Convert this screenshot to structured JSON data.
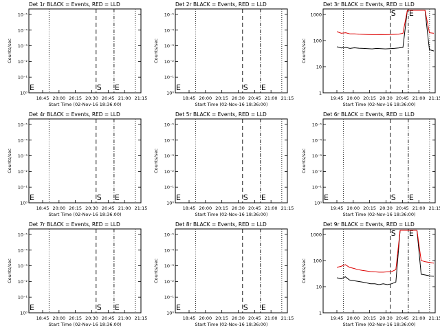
{
  "chart_data": [
    {
      "type": "line",
      "title": "Det 1r BLACK = Events, RED = LLD",
      "xlabel": "Start Time (02-Nov-16 18:36:00)",
      "ylabel": "Counts/sec",
      "yscale": "log",
      "ytick_labels": [
        "10⁰",
        "10⁻¹",
        "10⁻²",
        "10⁻³",
        "10⁻⁴",
        "10⁻⁵"
      ],
      "xtick_labels": [
        "18:45",
        "20:00",
        "20:15",
        "20:30",
        "20:45",
        "21:00",
        "21:15"
      ],
      "markers": [
        "S",
        "E"
      ],
      "series": []
    },
    {
      "type": "line",
      "title": "Det 2r BLACK = Events, RED = LLD",
      "xlabel": "Start Time (02-Nov-16 18:36:00)",
      "ylabel": "Counts/sec",
      "yscale": "log",
      "ytick_labels": [
        "10⁰",
        "10⁻¹",
        "10⁻²",
        "10⁻³",
        "10⁻⁴",
        "10⁻⁵"
      ],
      "xtick_labels": [
        "18:45",
        "20:00",
        "20:15",
        "20:30",
        "20:45",
        "21:00",
        "21:15"
      ],
      "markers": [
        "S",
        "E"
      ],
      "series": []
    },
    {
      "type": "line",
      "title": "Det 3r BLACK = Events, RED = LLD",
      "xlabel": "Start Time (02-Nov-16 18:36:00)",
      "ylabel": "Counts/sec",
      "yscale": "log",
      "ytick_labels": [
        "1",
        "10",
        "100",
        "1000"
      ],
      "xtick_labels": [
        "19:45",
        "20:00",
        "20:15",
        "20:30",
        "20:45",
        "21:00",
        "21:15"
      ],
      "markers": [
        "S",
        "E"
      ],
      "series": [
        {
          "color": "#000000",
          "values": [
            58,
            52,
            55,
            50,
            53,
            51,
            50,
            49,
            48,
            50,
            49,
            48,
            49,
            50,
            52,
            55,
            1400,
            1500,
            1500,
            1500,
            1500,
            45,
            40
          ]
        },
        {
          "color": "#dd0000",
          "values": [
            220,
            190,
            200,
            180,
            180,
            175,
            172,
            170,
            168,
            168,
            170,
            168,
            170,
            172,
            175,
            190,
            1500,
            1500,
            1500,
            1500,
            1500,
            200,
            190
          ]
        }
      ]
    },
    {
      "type": "line",
      "title": "Det 4r BLACK = Events, RED = LLD",
      "xlabel": "Start Time (02-Nov-16 18:36:00)",
      "ylabel": "Counts/sec",
      "yscale": "log",
      "ytick_labels": [
        "10⁰",
        "10⁻¹",
        "10⁻²",
        "10⁻³",
        "10⁻⁴",
        "10⁻⁵"
      ],
      "xtick_labels": [
        "18:45",
        "20:00",
        "20:15",
        "20:30",
        "20:45",
        "21:00",
        "21:15"
      ],
      "markers": [
        "S",
        "E"
      ],
      "series": []
    },
    {
      "type": "line",
      "title": "Det 5r BLACK = Events, RED = LLD",
      "xlabel": "Start Time (02-Nov-16 18:36:00)",
      "ylabel": "Counts/sec",
      "yscale": "log",
      "ytick_labels": [
        "10⁰",
        "10⁻¹",
        "10⁻²",
        "10⁻³",
        "10⁻⁴",
        "10⁻⁵"
      ],
      "xtick_labels": [
        "18:45",
        "20:00",
        "20:15",
        "20:30",
        "20:45",
        "21:00",
        "21:15"
      ],
      "markers": [
        "S",
        "E"
      ],
      "series": []
    },
    {
      "type": "line",
      "title": "Det 6r BLACK = Events, RED = LLD",
      "xlabel": "Start Time (02-Nov-16 18:36:00)",
      "ylabel": "Counts/sec",
      "yscale": "log",
      "ytick_labels": [
        "10⁰",
        "10⁻¹",
        "10⁻²",
        "10⁻³",
        "10⁻⁴",
        "10⁻⁵"
      ],
      "xtick_labels": [
        "19:45",
        "20:00",
        "20:15",
        "20:30",
        "20:45",
        "21:00",
        "21:15"
      ],
      "markers": [
        "S",
        "E"
      ],
      "series": []
    },
    {
      "type": "line",
      "title": "Det 7r BLACK = Events, RED = LLD",
      "xlabel": "Start Time (02-Nov-16 18:36:00)",
      "ylabel": "Counts/sec",
      "yscale": "log",
      "ytick_labels": [
        "10⁰",
        "10⁻¹",
        "10⁻²",
        "10⁻³",
        "10⁻⁴",
        "10⁻⁵"
      ],
      "xtick_labels": [
        "18:45",
        "20:00",
        "20:15",
        "20:30",
        "20:45",
        "21:00",
        "21:15"
      ],
      "markers": [
        "S",
        "E"
      ],
      "series": []
    },
    {
      "type": "line",
      "title": "Det 8r BLACK = Events, RED = LLD",
      "xlabel": "Start Time (02-Nov-16 18:36:00)",
      "ylabel": "Counts/sec",
      "yscale": "log",
      "ytick_labels": [
        "10⁰",
        "10⁻¹",
        "10⁻²",
        "10⁻³",
        "10⁻⁴",
        "10⁻⁵"
      ],
      "xtick_labels": [
        "18:45",
        "20:00",
        "20:15",
        "20:30",
        "20:45",
        "21:00",
        "21:15"
      ],
      "markers": [
        "S",
        "E"
      ],
      "series": []
    },
    {
      "type": "line",
      "title": "Det 9r BLACK = Events, RED = LLD",
      "xlabel": "Start Time (02-Nov-16 18:36:00)",
      "ylabel": "Counts/sec",
      "yscale": "log",
      "ytick_labels": [
        "1",
        "10",
        "100",
        "1000"
      ],
      "xtick_labels": [
        "19:45",
        "20:00",
        "20:15",
        "20:30",
        "20:45",
        "21:00",
        "21:15"
      ],
      "markers": [
        "S",
        "E"
      ],
      "series": [
        {
          "color": "#000000",
          "values": [
            22,
            20,
            24,
            18,
            17,
            16,
            15,
            14,
            13,
            13,
            12,
            13,
            12,
            13,
            15,
            1400,
            1500,
            1500,
            1500,
            1500,
            30,
            28,
            26,
            25
          ]
        },
        {
          "color": "#dd0000",
          "values": [
            55,
            60,
            70,
            55,
            50,
            45,
            42,
            40,
            38,
            37,
            36,
            36,
            37,
            38,
            45,
            1500,
            1500,
            1500,
            1500,
            1500,
            100,
            90,
            85,
            80
          ]
        }
      ]
    }
  ]
}
